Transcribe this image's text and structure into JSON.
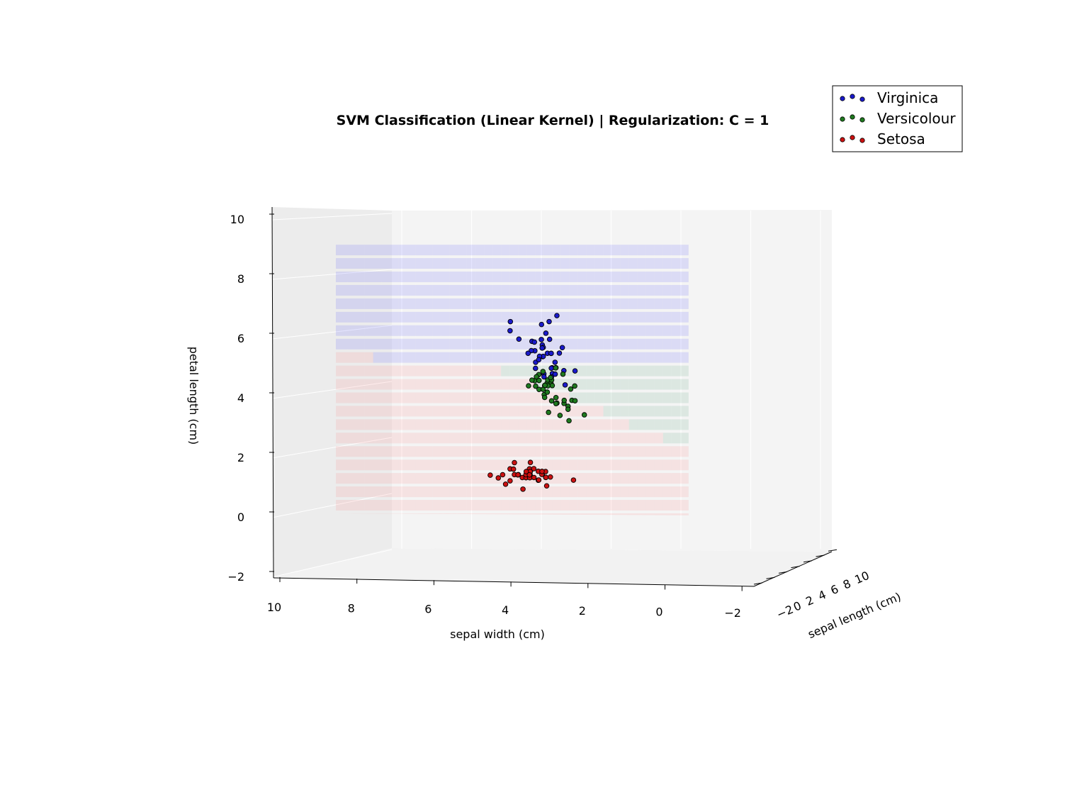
{
  "chart_data": {
    "type": "scatter",
    "title": "SVM Classification (Linear Kernel) | Regularization: C = 1",
    "xlabel": "sepal length (cm)",
    "ylabel": "sepal width (cm)",
    "zlabel": "petal length (cm)",
    "xlim": [
      -2,
      10
    ],
    "ylim": [
      -2,
      10
    ],
    "zlim": [
      -2,
      10
    ],
    "x_ticks": [
      "−2",
      "0",
      "2",
      "4",
      "6",
      "8",
      "10"
    ],
    "y_ticks": [
      "10",
      "8",
      "6",
      "4",
      "2",
      "0",
      "−2"
    ],
    "z_ticks": [
      "10",
      "8",
      "6",
      "4",
      "2",
      "0",
      "−2"
    ],
    "legend": {
      "position": "top-right",
      "entries": [
        "Virginica",
        "Versicolour",
        "Setosa"
      ]
    },
    "grid": true,
    "decision_regions": {
      "description_colors": {
        "Virginica": "#0000ff",
        "Versicolour": "#2e8b57",
        "Setosa": "#ff4040"
      },
      "sepal_width_range": [
        0,
        9
      ],
      "petal_length_range": [
        0,
        9
      ]
    },
    "series": [
      {
        "name": "Virginica",
        "color": "#1a1acc",
        "points": [
          [
            6.3,
            3.3,
            6.0
          ],
          [
            5.8,
            2.7,
            5.1
          ],
          [
            7.1,
            3.0,
            5.9
          ],
          [
            6.3,
            2.9,
            5.6
          ],
          [
            6.5,
            3.0,
            5.8
          ],
          [
            7.6,
            3.0,
            6.6
          ],
          [
            4.9,
            2.5,
            4.5
          ],
          [
            7.3,
            2.9,
            6.3
          ],
          [
            6.7,
            2.5,
            5.8
          ],
          [
            7.2,
            3.6,
            6.1
          ],
          [
            6.5,
            3.2,
            5.1
          ],
          [
            6.4,
            2.7,
            5.3
          ],
          [
            6.8,
            3.0,
            5.5
          ],
          [
            5.7,
            2.5,
            5.0
          ],
          [
            5.8,
            2.8,
            5.1
          ],
          [
            6.4,
            3.2,
            5.3
          ],
          [
            6.5,
            3.0,
            5.5
          ],
          [
            7.7,
            3.8,
            6.7
          ],
          [
            7.7,
            2.6,
            6.9
          ],
          [
            6.0,
            2.2,
            5.0
          ],
          [
            6.9,
            3.2,
            5.7
          ],
          [
            5.6,
            2.8,
            4.9
          ],
          [
            7.7,
            2.8,
            6.7
          ],
          [
            6.3,
            2.7,
            4.9
          ],
          [
            6.7,
            3.3,
            5.7
          ],
          [
            7.2,
            3.2,
            6.0
          ],
          [
            6.2,
            2.8,
            4.8
          ],
          [
            6.1,
            3.0,
            4.9
          ],
          [
            6.4,
            2.8,
            5.6
          ],
          [
            7.2,
            3.0,
            5.8
          ],
          [
            7.4,
            2.8,
            6.1
          ],
          [
            7.9,
            3.8,
            6.4
          ],
          [
            6.4,
            2.8,
            5.6
          ],
          [
            6.3,
            2.8,
            5.1
          ],
          [
            6.1,
            2.6,
            5.6
          ],
          [
            7.7,
            3.0,
            6.1
          ],
          [
            6.3,
            3.4,
            5.6
          ],
          [
            6.4,
            3.1,
            5.5
          ],
          [
            6.0,
            3.0,
            4.8
          ],
          [
            6.9,
            3.1,
            5.4
          ]
        ]
      },
      {
        "name": "Versicolour",
        "color": "#1f7a1f",
        "points": [
          [
            7.0,
            3.2,
            4.7
          ],
          [
            6.4,
            3.2,
            4.5
          ],
          [
            6.9,
            3.1,
            4.9
          ],
          [
            5.5,
            2.3,
            4.0
          ],
          [
            6.5,
            2.8,
            4.6
          ],
          [
            5.7,
            2.8,
            4.5
          ],
          [
            6.3,
            3.3,
            4.7
          ],
          [
            4.9,
            2.4,
            3.3
          ],
          [
            6.6,
            2.9,
            4.6
          ],
          [
            5.2,
            2.7,
            3.9
          ],
          [
            5.0,
            2.0,
            3.5
          ],
          [
            5.9,
            3.0,
            4.2
          ],
          [
            6.0,
            2.2,
            4.0
          ],
          [
            6.1,
            2.9,
            4.7
          ],
          [
            5.6,
            2.9,
            3.6
          ],
          [
            6.7,
            3.1,
            4.4
          ],
          [
            5.6,
            3.0,
            4.5
          ],
          [
            5.8,
            2.7,
            4.1
          ],
          [
            6.2,
            2.2,
            4.5
          ],
          [
            5.6,
            2.5,
            3.9
          ],
          [
            5.9,
            3.2,
            4.8
          ],
          [
            6.1,
            2.8,
            4.0
          ],
          [
            6.3,
            2.5,
            4.9
          ],
          [
            6.1,
            2.8,
            4.7
          ],
          [
            6.4,
            2.9,
            4.3
          ],
          [
            6.6,
            3.0,
            4.4
          ],
          [
            6.8,
            2.8,
            4.8
          ],
          [
            6.7,
            3.0,
            5.0
          ],
          [
            6.0,
            2.9,
            4.5
          ],
          [
            5.7,
            2.6,
            3.5
          ],
          [
            5.5,
            2.4,
            3.8
          ],
          [
            5.5,
            2.4,
            3.7
          ],
          [
            5.8,
            2.7,
            3.9
          ],
          [
            6.0,
            2.7,
            5.1
          ],
          [
            5.4,
            3.0,
            4.5
          ],
          [
            6.0,
            3.4,
            4.5
          ],
          [
            6.7,
            3.1,
            4.7
          ],
          [
            6.3,
            2.3,
            4.4
          ],
          [
            5.6,
            3.0,
            4.1
          ],
          [
            5.5,
            2.5,
            4.0
          ]
        ]
      },
      {
        "name": "Setosa",
        "color": "#cc1111",
        "points": [
          [
            5.1,
            3.5,
            1.4
          ],
          [
            4.9,
            3.0,
            1.4
          ],
          [
            4.7,
            3.2,
            1.3
          ],
          [
            4.6,
            3.1,
            1.5
          ],
          [
            5.0,
            3.6,
            1.4
          ],
          [
            5.4,
            3.9,
            1.7
          ],
          [
            4.6,
            3.4,
            1.4
          ],
          [
            5.0,
            3.4,
            1.5
          ],
          [
            4.4,
            2.9,
            1.4
          ],
          [
            4.9,
            3.1,
            1.5
          ],
          [
            5.4,
            3.7,
            1.5
          ],
          [
            4.8,
            3.4,
            1.6
          ],
          [
            4.8,
            3.0,
            1.4
          ],
          [
            4.3,
            3.0,
            1.1
          ],
          [
            5.8,
            4.0,
            1.2
          ],
          [
            5.7,
            4.4,
            1.5
          ],
          [
            5.4,
            3.9,
            1.3
          ],
          [
            5.1,
            3.5,
            1.4
          ],
          [
            5.7,
            3.8,
            1.7
          ],
          [
            5.1,
            3.8,
            1.5
          ],
          [
            5.4,
            3.4,
            1.7
          ],
          [
            5.1,
            3.7,
            1.5
          ],
          [
            4.6,
            3.6,
            1.0
          ],
          [
            5.1,
            3.3,
            1.7
          ],
          [
            4.8,
            3.4,
            1.9
          ],
          [
            5.0,
            3.0,
            1.6
          ],
          [
            5.0,
            3.4,
            1.6
          ],
          [
            5.2,
            3.5,
            1.5
          ],
          [
            5.2,
            3.4,
            1.4
          ],
          [
            4.7,
            3.2,
            1.6
          ],
          [
            4.8,
            3.1,
            1.6
          ],
          [
            5.4,
            3.4,
            1.5
          ],
          [
            5.2,
            4.1,
            1.5
          ],
          [
            5.5,
            4.2,
            1.4
          ],
          [
            4.5,
            2.3,
            1.3
          ],
          [
            4.4,
            3.2,
            1.3
          ],
          [
            5.0,
            3.5,
            1.6
          ],
          [
            5.1,
            3.8,
            1.9
          ],
          [
            5.3,
            3.7,
            1.5
          ],
          [
            5.0,
            3.3,
            1.4
          ]
        ]
      }
    ]
  },
  "colors": {
    "pane_left": "#eaeaea",
    "pane_back": "#f2f2f2",
    "pane_floor": "#f5f5f5",
    "grid": "#ffffff",
    "legend_border": "#000000"
  }
}
